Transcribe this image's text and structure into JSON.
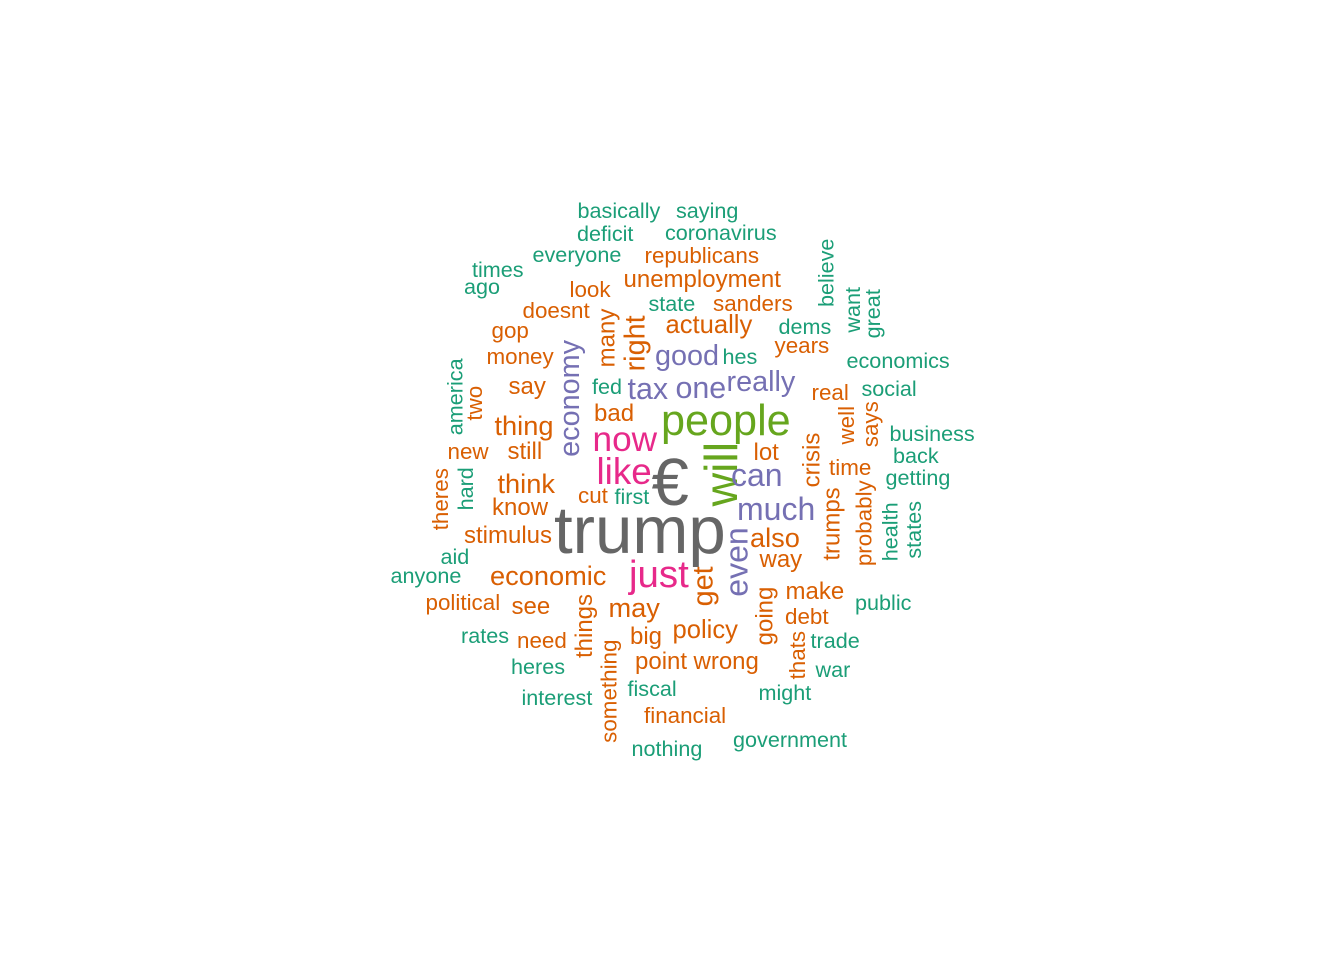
{
  "colors": {
    "green": "#1B9E77",
    "orange": "#D95F02",
    "purple": "#7570B3",
    "pink": "#E7298A",
    "lime": "#66A61E",
    "gray": "#666666"
  },
  "words": [
    {
      "text": "trump",
      "size": 4.2,
      "color": "gray",
      "rotated": false
    },
    {
      "text": "€",
      "size": 4.2,
      "color": "gray",
      "rotated": false
    },
    {
      "text": "people",
      "size": 2.7,
      "color": "lime",
      "rotated": false
    },
    {
      "text": "will",
      "size": 2.9,
      "color": "lime",
      "rotated": true
    },
    {
      "text": "just",
      "size": 2.4,
      "color": "pink",
      "rotated": false
    },
    {
      "text": "like",
      "size": 2.3,
      "color": "pink",
      "rotated": false
    },
    {
      "text": "now",
      "size": 2.2,
      "color": "pink",
      "rotated": false
    },
    {
      "text": "much",
      "size": 2.0,
      "color": "purple",
      "rotated": false
    },
    {
      "text": "even",
      "size": 2.0,
      "color": "purple",
      "rotated": true
    },
    {
      "text": "can",
      "size": 2.0,
      "color": "purple",
      "rotated": false
    },
    {
      "text": "tax",
      "size": 1.9,
      "color": "purple",
      "rotated": false
    },
    {
      "text": "one",
      "size": 1.9,
      "color": "purple",
      "rotated": false
    },
    {
      "text": "good",
      "size": 1.8,
      "color": "purple",
      "rotated": false
    },
    {
      "text": "really",
      "size": 1.8,
      "color": "purple",
      "rotated": false
    },
    {
      "text": "economy",
      "size": 1.8,
      "color": "purple",
      "rotated": true
    },
    {
      "text": "get",
      "size": 1.8,
      "color": "orange",
      "rotated": true
    },
    {
      "text": "right",
      "size": 1.8,
      "color": "orange",
      "rotated": true
    },
    {
      "text": "economic",
      "size": 1.7,
      "color": "orange",
      "rotated": false
    },
    {
      "text": "think",
      "size": 1.7,
      "color": "orange",
      "rotated": false
    },
    {
      "text": "thing",
      "size": 1.7,
      "color": "orange",
      "rotated": false
    },
    {
      "text": "may",
      "size": 1.7,
      "color": "orange",
      "rotated": false
    },
    {
      "text": "also",
      "size": 1.7,
      "color": "orange",
      "rotated": false
    },
    {
      "text": "actually",
      "size": 1.6,
      "color": "orange",
      "rotated": false
    },
    {
      "text": "policy",
      "size": 1.6,
      "color": "orange",
      "rotated": false
    },
    {
      "text": "stimulus",
      "size": 1.5,
      "color": "orange",
      "rotated": false
    },
    {
      "text": "know",
      "size": 1.5,
      "color": "orange",
      "rotated": false
    },
    {
      "text": "say",
      "size": 1.5,
      "color": "orange",
      "rotated": false
    },
    {
      "text": "still",
      "size": 1.5,
      "color": "orange",
      "rotated": false
    },
    {
      "text": "lot",
      "size": 1.5,
      "color": "orange",
      "rotated": false
    },
    {
      "text": "bad",
      "size": 1.5,
      "color": "orange",
      "rotated": false
    },
    {
      "text": "way",
      "size": 1.5,
      "color": "orange",
      "rotated": false
    },
    {
      "text": "crisis",
      "size": 1.5,
      "color": "orange",
      "rotated": true
    },
    {
      "text": "trumps",
      "size": 1.5,
      "color": "orange",
      "rotated": true
    },
    {
      "text": "many",
      "size": 1.5,
      "color": "orange",
      "rotated": true
    },
    {
      "text": "going",
      "size": 1.5,
      "color": "orange",
      "rotated": true
    },
    {
      "text": "make",
      "size": 1.5,
      "color": "orange",
      "rotated": false
    },
    {
      "text": "point",
      "size": 1.5,
      "color": "orange",
      "rotated": false
    },
    {
      "text": "wrong",
      "size": 1.5,
      "color": "orange",
      "rotated": false
    },
    {
      "text": "see",
      "size": 1.5,
      "color": "orange",
      "rotated": false
    },
    {
      "text": "big",
      "size": 1.5,
      "color": "orange",
      "rotated": false
    },
    {
      "text": "things",
      "size": 1.5,
      "color": "orange",
      "rotated": true
    },
    {
      "text": "unemployment",
      "size": 1.5,
      "color": "orange",
      "rotated": false
    },
    {
      "text": "sanders",
      "size": 1.4,
      "color": "orange",
      "rotated": false
    },
    {
      "text": "years",
      "size": 1.4,
      "color": "orange",
      "rotated": false
    },
    {
      "text": "time",
      "size": 1.4,
      "color": "orange",
      "rotated": false
    },
    {
      "text": "well",
      "size": 1.4,
      "color": "orange",
      "rotated": true
    },
    {
      "text": "probably",
      "size": 1.4,
      "color": "orange",
      "rotated": true
    },
    {
      "text": "debt",
      "size": 1.4,
      "color": "orange",
      "rotated": false
    },
    {
      "text": "need",
      "size": 1.4,
      "color": "orange",
      "rotated": false
    },
    {
      "text": "cut",
      "size": 1.4,
      "color": "orange",
      "rotated": false
    },
    {
      "text": "real",
      "size": 1.4,
      "color": "orange",
      "rotated": false
    },
    {
      "text": "says",
      "size": 1.4,
      "color": "orange",
      "rotated": true
    },
    {
      "text": "thats",
      "size": 1.4,
      "color": "orange",
      "rotated": true
    },
    {
      "text": "doesnt",
      "size": 1.4,
      "color": "orange",
      "rotated": false
    },
    {
      "text": "money",
      "size": 1.4,
      "color": "orange",
      "rotated": false
    },
    {
      "text": "gop",
      "size": 1.4,
      "color": "orange",
      "rotated": false
    },
    {
      "text": "look",
      "size": 1.4,
      "color": "orange",
      "rotated": false
    },
    {
      "text": "republicans",
      "size": 1.4,
      "color": "orange",
      "rotated": false
    },
    {
      "text": "new",
      "size": 1.4,
      "color": "orange",
      "rotated": false
    },
    {
      "text": "two",
      "size": 1.4,
      "color": "orange",
      "rotated": true
    },
    {
      "text": "theres",
      "size": 1.4,
      "color": "orange",
      "rotated": true
    },
    {
      "text": "political",
      "size": 1.4,
      "color": "orange",
      "rotated": false
    },
    {
      "text": "financial",
      "size": 1.4,
      "color": "orange",
      "rotated": false
    },
    {
      "text": "something",
      "size": 1.4,
      "color": "orange",
      "rotated": true
    },
    {
      "text": "basically",
      "size": 1.35,
      "color": "green",
      "rotated": false
    },
    {
      "text": "saying",
      "size": 1.35,
      "color": "green",
      "rotated": false
    },
    {
      "text": "deficit",
      "size": 1.35,
      "color": "green",
      "rotated": false
    },
    {
      "text": "coronavirus",
      "size": 1.35,
      "color": "green",
      "rotated": false
    },
    {
      "text": "everyone",
      "size": 1.35,
      "color": "green",
      "rotated": false
    },
    {
      "text": "times",
      "size": 1.35,
      "color": "green",
      "rotated": false
    },
    {
      "text": "ago",
      "size": 1.35,
      "color": "green",
      "rotated": false
    },
    {
      "text": "state",
      "size": 1.35,
      "color": "green",
      "rotated": false
    },
    {
      "text": "dems",
      "size": 1.35,
      "color": "green",
      "rotated": false
    },
    {
      "text": "believe",
      "size": 1.35,
      "color": "green",
      "rotated": true
    },
    {
      "text": "want",
      "size": 1.35,
      "color": "green",
      "rotated": true
    },
    {
      "text": "great",
      "size": 1.35,
      "color": "green",
      "rotated": true
    },
    {
      "text": "economics",
      "size": 1.35,
      "color": "green",
      "rotated": false
    },
    {
      "text": "hes",
      "size": 1.35,
      "color": "green",
      "rotated": false
    },
    {
      "text": "fed",
      "size": 1.35,
      "color": "green",
      "rotated": false
    },
    {
      "text": "social",
      "size": 1.35,
      "color": "green",
      "rotated": false
    },
    {
      "text": "america",
      "size": 1.35,
      "color": "green",
      "rotated": true
    },
    {
      "text": "business",
      "size": 1.35,
      "color": "green",
      "rotated": false
    },
    {
      "text": "back",
      "size": 1.35,
      "color": "green",
      "rotated": false
    },
    {
      "text": "getting",
      "size": 1.35,
      "color": "green",
      "rotated": false
    },
    {
      "text": "first",
      "size": 1.35,
      "color": "green",
      "rotated": false
    },
    {
      "text": "hard",
      "size": 1.35,
      "color": "green",
      "rotated": true
    },
    {
      "text": "health",
      "size": 1.35,
      "color": "green",
      "rotated": true
    },
    {
      "text": "states",
      "size": 1.35,
      "color": "green",
      "rotated": true
    },
    {
      "text": "aid",
      "size": 1.35,
      "color": "green",
      "rotated": false
    },
    {
      "text": "anyone",
      "size": 1.35,
      "color": "green",
      "rotated": false
    },
    {
      "text": "public",
      "size": 1.35,
      "color": "green",
      "rotated": false
    },
    {
      "text": "rates",
      "size": 1.35,
      "color": "green",
      "rotated": false
    },
    {
      "text": "trade",
      "size": 1.35,
      "color": "green",
      "rotated": false
    },
    {
      "text": "heres",
      "size": 1.35,
      "color": "green",
      "rotated": false
    },
    {
      "text": "war",
      "size": 1.35,
      "color": "green",
      "rotated": false
    },
    {
      "text": "interest",
      "size": 1.35,
      "color": "green",
      "rotated": false
    },
    {
      "text": "fiscal",
      "size": 1.35,
      "color": "green",
      "rotated": false
    },
    {
      "text": "might",
      "size": 1.35,
      "color": "green",
      "rotated": false
    },
    {
      "text": "government",
      "size": 1.35,
      "color": "green",
      "rotated": false
    },
    {
      "text": "nothing",
      "size": 1.35,
      "color": "green",
      "rotated": false
    }
  ]
}
